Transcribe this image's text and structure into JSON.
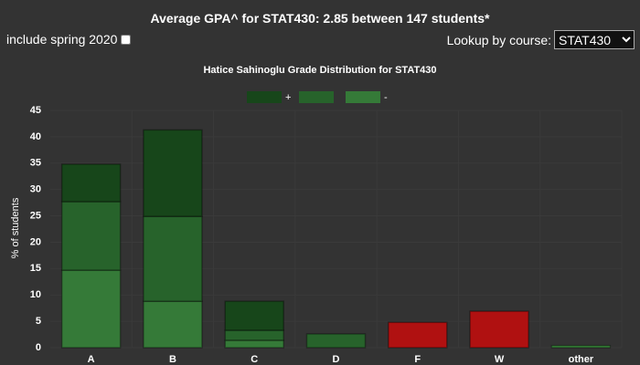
{
  "header": {
    "title": "Average GPA^ for STAT430: 2.85 between 147 students*",
    "checkbox_label": "include spring 2020",
    "lookup_label": "Lookup by course:",
    "selected_course": "STAT430"
  },
  "chart_data": {
    "type": "stacked-bar",
    "title": "Hatice Sahinoglu Grade Distribution for STAT430",
    "y_label": "% of students",
    "categories": [
      "A",
      "B",
      "C",
      "D",
      "F",
      "W",
      "other"
    ],
    "series": [
      {
        "name": "+",
        "color": "#17461a",
        "values": [
          7.1,
          16.4,
          5.5,
          null,
          null,
          null,
          null
        ]
      },
      {
        "name": null,
        "color": "#27632b",
        "colors": [
          "#27632b",
          "#27632b",
          "#27632b",
          "#27632b",
          "#b01111",
          "#b01111",
          "#3a8a3c"
        ],
        "values": [
          13.0,
          16.1,
          1.9,
          2.6,
          4.8,
          6.9,
          0.4
        ]
      },
      {
        "name": "-",
        "color": "#357a38",
        "values": [
          14.7,
          8.8,
          1.4,
          null,
          null,
          null,
          null
        ]
      }
    ],
    "ylim": [
      0,
      45
    ],
    "yticks": [
      0,
      5,
      10,
      15,
      20,
      25,
      30,
      35,
      40,
      45
    ],
    "grid": true
  }
}
